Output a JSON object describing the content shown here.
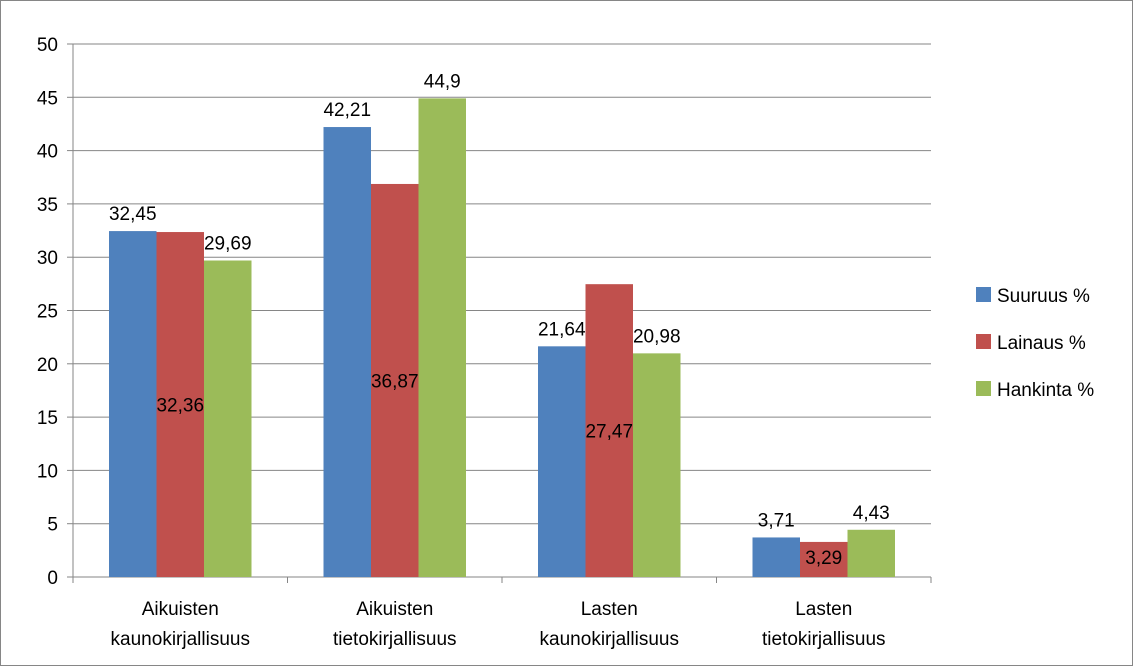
{
  "chart_data": {
    "type": "bar",
    "categories": [
      [
        "Aikuisten",
        "kaunokirjallisuus"
      ],
      [
        "Aikuisten",
        "tietokirjallisuus"
      ],
      [
        "Lasten",
        "kaunokirjallisuus"
      ],
      [
        "Lasten",
        "tietokirjallisuus"
      ]
    ],
    "series": [
      {
        "name": "Suuruus %",
        "color": "#4F81BD",
        "values": [
          32.45,
          42.21,
          21.64,
          3.71
        ],
        "labels": [
          "32,45",
          "42,21",
          "21,64",
          "3,71"
        ]
      },
      {
        "name": "Lainaus %",
        "color": "#C0504D",
        "values": [
          32.36,
          36.87,
          27.47,
          3.29
        ],
        "labels": [
          "32,36",
          "36,87",
          "27,47",
          "3,29"
        ]
      },
      {
        "name": "Hankinta %",
        "color": "#9BBB59",
        "values": [
          29.69,
          44.9,
          20.98,
          4.43
        ],
        "labels": [
          "29,69",
          "44,9",
          "20,98",
          "4,43"
        ]
      }
    ],
    "ylim": [
      0,
      50
    ],
    "yticks": [
      "0",
      "5",
      "10",
      "15",
      "20",
      "25",
      "30",
      "35",
      "40",
      "45",
      "50"
    ],
    "grid": true,
    "legend_position": "right"
  }
}
